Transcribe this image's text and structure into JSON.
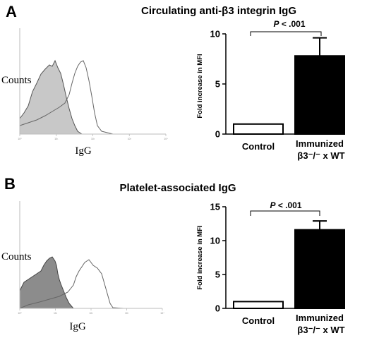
{
  "chart_data": [
    {
      "panel": "A",
      "title": "Circulating  anti-β3 integrin IgG",
      "histogram": {
        "type": "area",
        "ylabel": "Counts",
        "xlabel": "IgG",
        "xticks": [
          "10⁰",
          "10¹",
          "10²",
          "10³",
          "10⁴"
        ],
        "series": [
          {
            "role": "filled",
            "color": "#c8c8c8"
          },
          {
            "role": "open",
            "color": "#ffffff"
          }
        ]
      },
      "bar": {
        "type": "bar",
        "ylabel": "Fold increase in MFI",
        "ylim": [
          0,
          10
        ],
        "yticks": [
          0,
          5,
          10
        ],
        "categories": [
          "Control",
          "Immunized"
        ],
        "category_sub": [
          "",
          "β3⁻/⁻ x WT"
        ],
        "values": [
          1,
          7.8
        ],
        "errors": [
          0,
          1.8
        ],
        "fills": [
          "#ffffff",
          "#000000"
        ],
        "annotation": {
          "p_symbol": "P",
          "p_text": " < .001"
        }
      }
    },
    {
      "panel": "B",
      "title": "Platelet-associated IgG",
      "histogram": {
        "type": "area",
        "ylabel": "Counts",
        "xlabel": "IgG",
        "xticks": [
          "10⁰",
          "10¹",
          "10²",
          "10³",
          "10⁴"
        ],
        "series": [
          {
            "role": "filled",
            "color": "#8c8c8c"
          },
          {
            "role": "open",
            "color": "#ffffff"
          }
        ]
      },
      "bar": {
        "type": "bar",
        "ylabel": "Fold increase in MFI",
        "ylim": [
          0,
          15
        ],
        "yticks": [
          0,
          5,
          10,
          15
        ],
        "categories": [
          "Control",
          "Immunized"
        ],
        "category_sub": [
          "",
          "β3⁻/⁻ x WT"
        ],
        "values": [
          1,
          11.6
        ],
        "errors": [
          0,
          1.3
        ],
        "fills": [
          "#ffffff",
          "#000000"
        ],
        "annotation": {
          "p_symbol": "P",
          "p_text": " < .001"
        }
      }
    }
  ]
}
